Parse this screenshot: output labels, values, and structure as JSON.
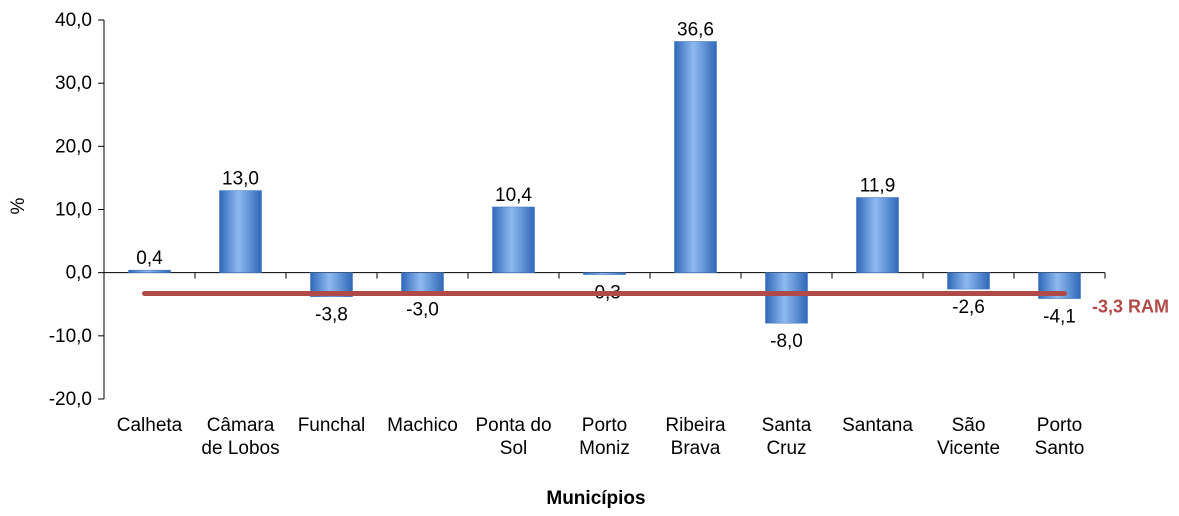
{
  "chart_data": {
    "type": "bar",
    "title": "",
    "xlabel": "Municípios",
    "ylabel": "%",
    "ylim": [
      -20,
      40
    ],
    "yticks": [
      "-20,0",
      "-10,0",
      "0,0",
      "10,0",
      "20,0",
      "30,0",
      "40,0"
    ],
    "yticks_values": [
      -20,
      -10,
      0,
      10,
      20,
      30,
      40
    ],
    "categories": [
      [
        "Calheta"
      ],
      [
        "Câmara",
        "de Lobos"
      ],
      [
        "Funchal"
      ],
      [
        "Machico"
      ],
      [
        "Ponta do",
        "Sol"
      ],
      [
        "Porto",
        "Moniz"
      ],
      [
        "Ribeira",
        "Brava"
      ],
      [
        "Santa",
        "Cruz"
      ],
      [
        "Santana"
      ],
      [
        "São",
        "Vicente"
      ],
      [
        "Porto",
        "Santo"
      ]
    ],
    "values": [
      0.4,
      13.0,
      -3.8,
      -3.0,
      10.4,
      -0.3,
      36.6,
      -8.0,
      11.9,
      -2.6,
      -4.1
    ],
    "value_labels": [
      "0,4",
      "13,0",
      "-3,8",
      "-3,0",
      "10,4",
      "-0,3",
      "36,6",
      "-8,0",
      "11,9",
      "-2,6",
      "-4,1"
    ],
    "reference_line": {
      "value": -3.3,
      "label": "-3,3 RAM",
      "color": "#b04a48"
    },
    "bar_color": "#4a86d6",
    "grid": false,
    "legend": "none"
  }
}
